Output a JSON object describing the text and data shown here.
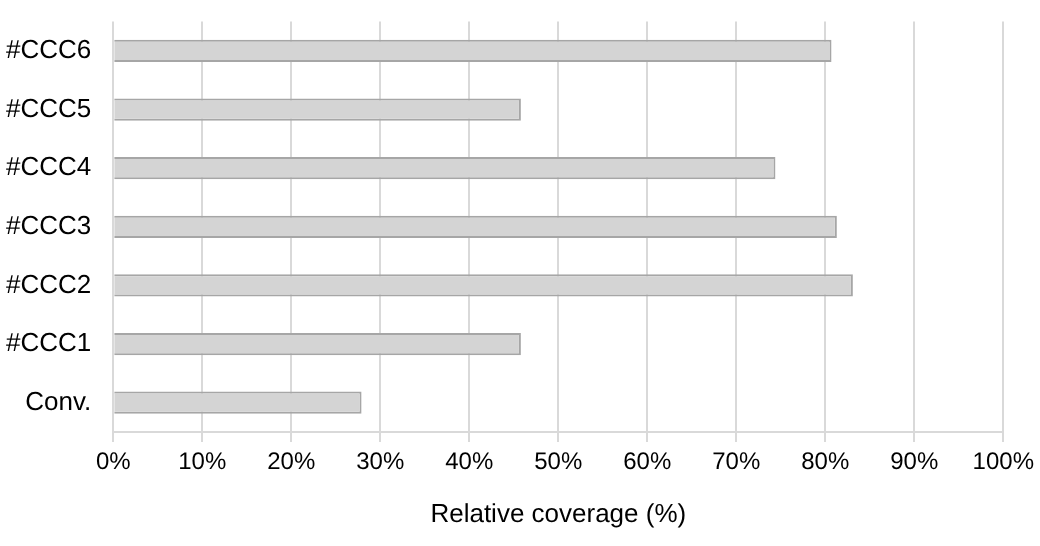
{
  "chart_data": {
    "type": "bar",
    "orientation": "horizontal",
    "xlabel": "Relative coverage (%)",
    "categories": [
      "#CCC6",
      "#CCC5",
      "#CCC4",
      "#CCC3",
      "#CCC2",
      "#CCC1",
      "Conv."
    ],
    "values": [
      80.7,
      45.8,
      74.4,
      81.3,
      83.1,
      45.8,
      27.9
    ],
    "color": "#d4d4d4",
    "xlim": [
      0,
      100
    ],
    "xticks": [
      {
        "value": 0,
        "label": "0%"
      },
      {
        "value": 10,
        "label": "10%"
      },
      {
        "value": 20,
        "label": "20%"
      },
      {
        "value": 30,
        "label": "30%"
      },
      {
        "value": 40,
        "label": "40%"
      },
      {
        "value": 50,
        "label": "50%"
      },
      {
        "value": 60,
        "label": "60%"
      },
      {
        "value": 70,
        "label": "70%"
      },
      {
        "value": 80,
        "label": "80%"
      },
      {
        "value": 90,
        "label": "90%"
      },
      {
        "value": 100,
        "label": "100%"
      }
    ],
    "grid": "x",
    "legend": false
  }
}
